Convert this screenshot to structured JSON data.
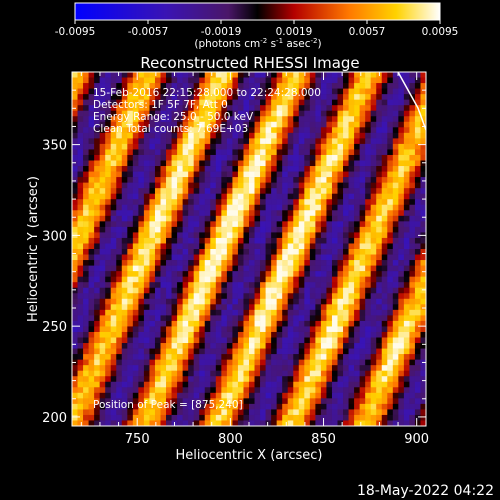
{
  "colorbar": {
    "ticks": [
      "-0.0095",
      "-0.0057",
      "-0.0019",
      "0.0019",
      "0.0057",
      "0.0095"
    ],
    "units_prefix": "(photons cm",
    "units_sup1": "-2",
    "units_mid1": " s",
    "units_sup2": "-1",
    "units_mid2": " asec",
    "units_sup3": "-2",
    "units_suffix": ")"
  },
  "chart_data": {
    "type": "heatmap",
    "title": "Reconstructed RHESSI Image",
    "xlabel": "Heliocentric X (arcsec)",
    "ylabel": "Heliocentric Y (arcsec)",
    "xlim": [
      715,
      905
    ],
    "ylim": [
      195,
      390
    ],
    "x_ticks": [
      "750",
      "800",
      "850",
      "900"
    ],
    "y_ticks": [
      "200",
      "250",
      "300",
      "350"
    ],
    "value_range": [
      -0.0095,
      0.0095
    ],
    "colormap": "blue-purple-red-yellow-white",
    "annotations": [
      "15-Feb-2016 22:15:28.000 to 22:24:28.000",
      "Detectors: 1F 5F 7F, Att 0",
      "Energy Range: 25.0 - 50.0 keV",
      "Clean    Total counts: 7.69E+03",
      "Position of Peak = [875,240]"
    ],
    "peak_position": [
      875,
      240
    ]
  },
  "footer": {
    "timestamp": "18-May-2022 04:22"
  }
}
